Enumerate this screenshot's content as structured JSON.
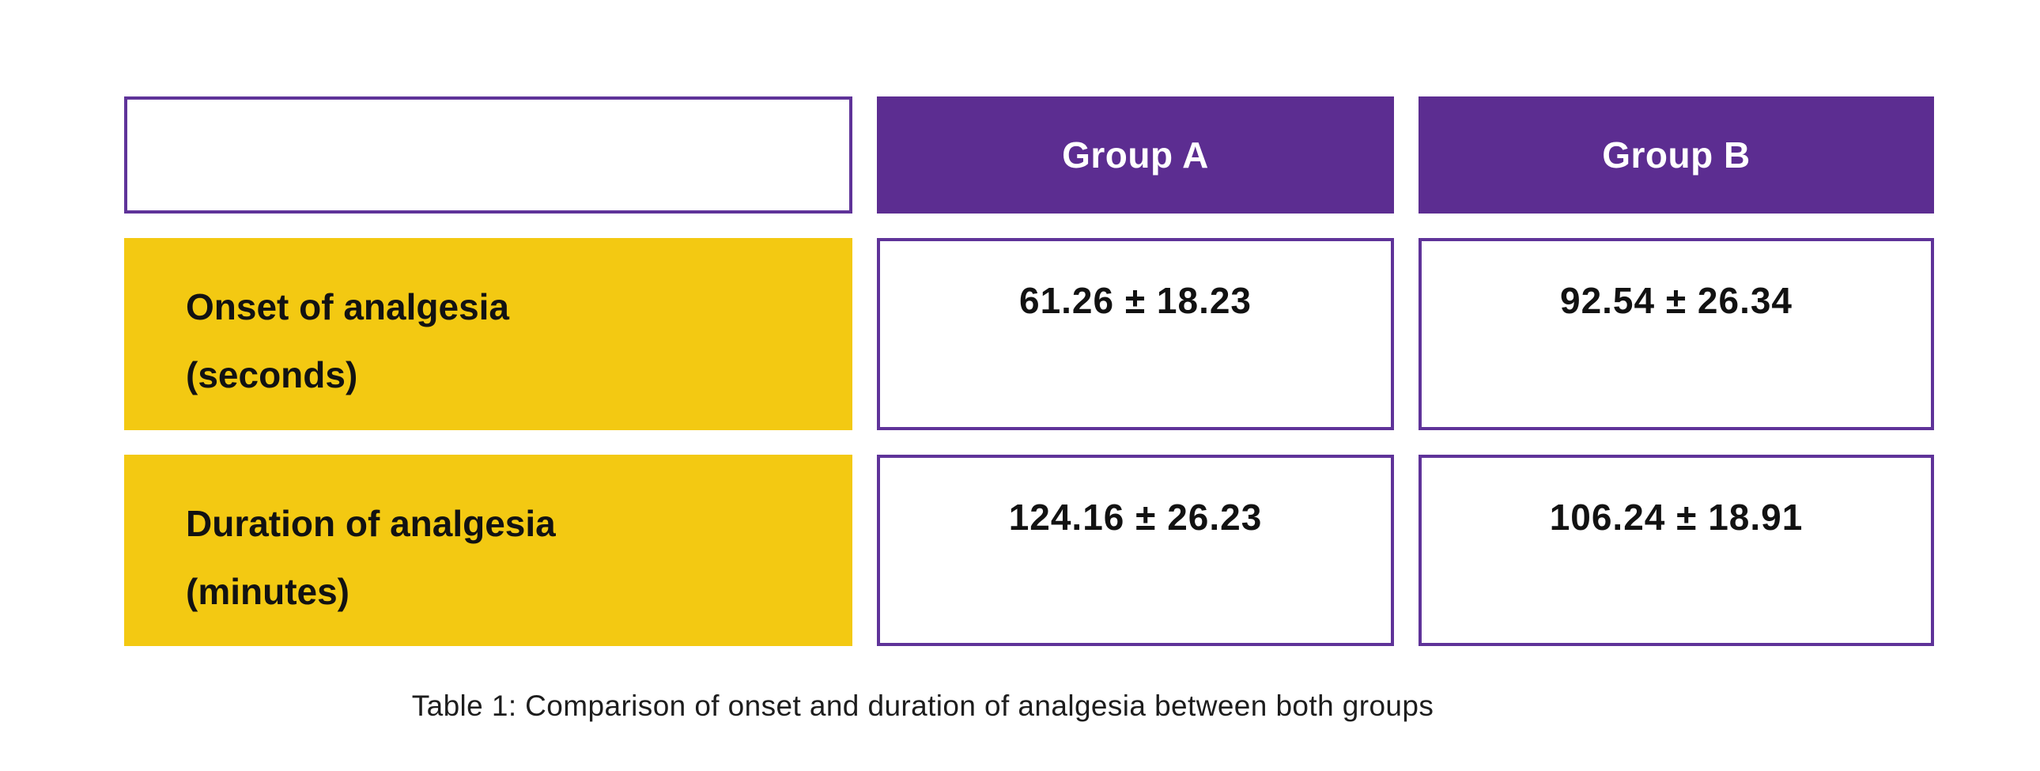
{
  "table": {
    "column_headers": [
      "Group A",
      "Group B"
    ],
    "rows": [
      {
        "label": "Onset of analgesia",
        "unit": "(seconds)",
        "group_a": "61.26 ± 18.23",
        "group_b": "92.54 ± 26.34"
      },
      {
        "label": "Duration of analgesia",
        "unit": "(minutes)",
        "group_a": "124.16 ± 26.23",
        "group_b": "106.24 ± 18.91"
      }
    ]
  },
  "caption": "Table 1: Comparison of onset and duration of analgesia between both groups",
  "colors": {
    "header_purple": "#5C2D91",
    "cell_border": "#5F3399",
    "row_yellow": "#F3C912",
    "text_dark": "#121212",
    "caption_color": "#1d1d1d"
  },
  "chart_data": {
    "type": "table",
    "title": "Table 1: Comparison of onset and duration of analgesia between both groups",
    "columns": [
      "",
      "Group A",
      "Group B"
    ],
    "rows": [
      [
        "Onset of analgesia (seconds)",
        "61.26 ± 18.23",
        "92.54 ± 26.34"
      ],
      [
        "Duration of analgesia (minutes)",
        "124.16 ± 26.23",
        "106.24 ± 18.91"
      ]
    ],
    "values": {
      "onset_of_analgesia_seconds": {
        "group_a_mean": 61.26,
        "group_a_sd": 18.23,
        "group_b_mean": 92.54,
        "group_b_sd": 26.34
      },
      "duration_of_analgesia_minutes": {
        "group_a_mean": 124.16,
        "group_a_sd": 26.23,
        "group_b_mean": 106.24,
        "group_b_sd": 18.91
      }
    },
    "layout": {
      "header_fill": "#5C2D91",
      "row_label_fill": "#F3C912",
      "value_cell_border": "#5F3399",
      "caption_position": "bottom-center"
    }
  }
}
